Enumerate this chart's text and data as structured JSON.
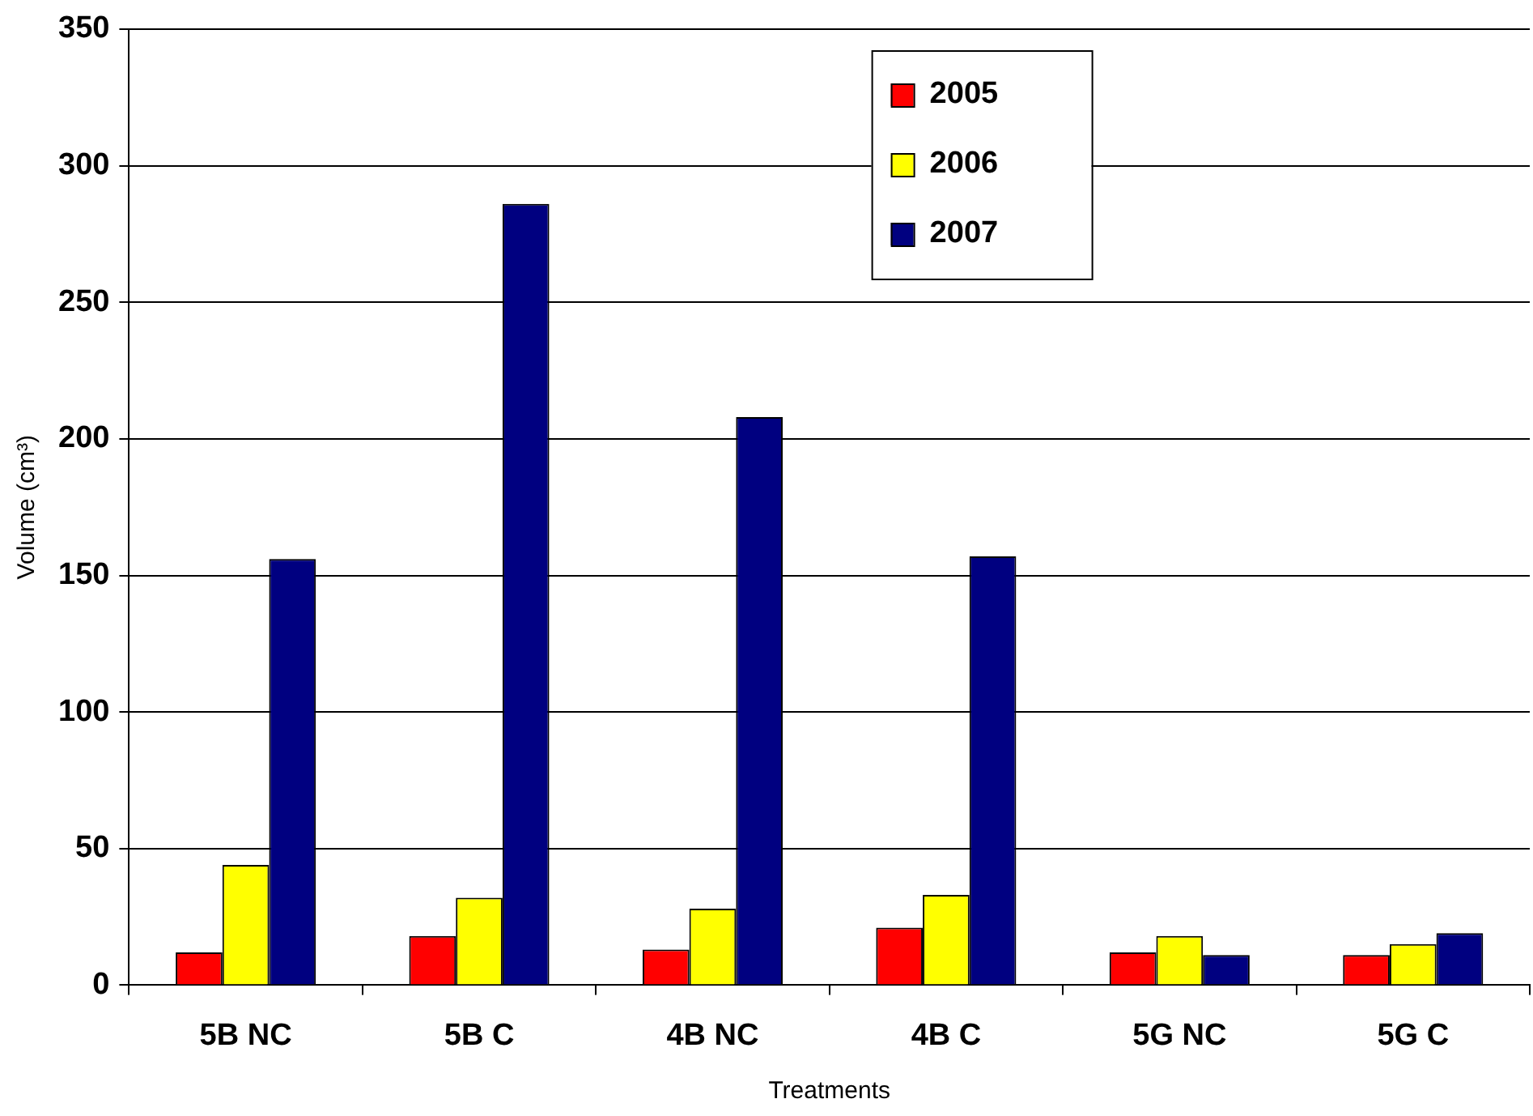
{
  "chart_data": {
    "type": "bar",
    "xlabel": "Treatments",
    "ylabel": "Volume (cm³)",
    "categories": [
      "5B NC",
      "5B C",
      "4B NC",
      "4B C",
      "5G NC",
      "5G C"
    ],
    "series": [
      {
        "name": "2005",
        "color": "#ff0000",
        "values": [
          12,
          18,
          13,
          21,
          12,
          11
        ]
      },
      {
        "name": "2006",
        "color": "#ffff00",
        "values": [
          44,
          32,
          28,
          33,
          18,
          15
        ]
      },
      {
        "name": "2007",
        "color": "#000080",
        "values": [
          156,
          286,
          208,
          157,
          11,
          19
        ]
      }
    ],
    "ylim": [
      0,
      350
    ],
    "yticks": [
      0,
      50,
      100,
      150,
      200,
      250,
      300,
      350
    ],
    "grid": "y",
    "legend": "top"
  }
}
